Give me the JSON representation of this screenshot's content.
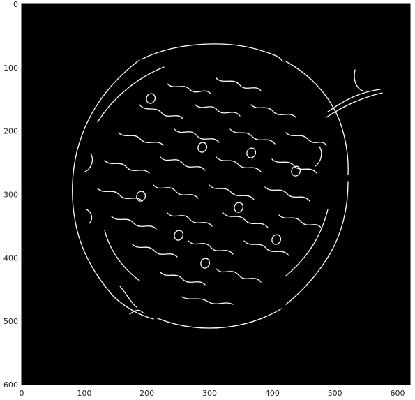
{
  "chart_data": {
    "type": "heatmap",
    "title": "",
    "xlabel": "",
    "ylabel": "",
    "xlim": [
      0,
      620
    ],
    "ylim": [
      600,
      0
    ],
    "y_inverted": true,
    "grid": false,
    "colormap": "gray",
    "background_color": "#000000",
    "edge_color": "#ffffff",
    "x_ticks": [
      0,
      100,
      200,
      300,
      400,
      500,
      600
    ],
    "y_ticks": [
      0,
      100,
      200,
      300,
      400,
      500,
      600
    ],
    "image_content": "binary edge map of a roughly circular textured object"
  }
}
